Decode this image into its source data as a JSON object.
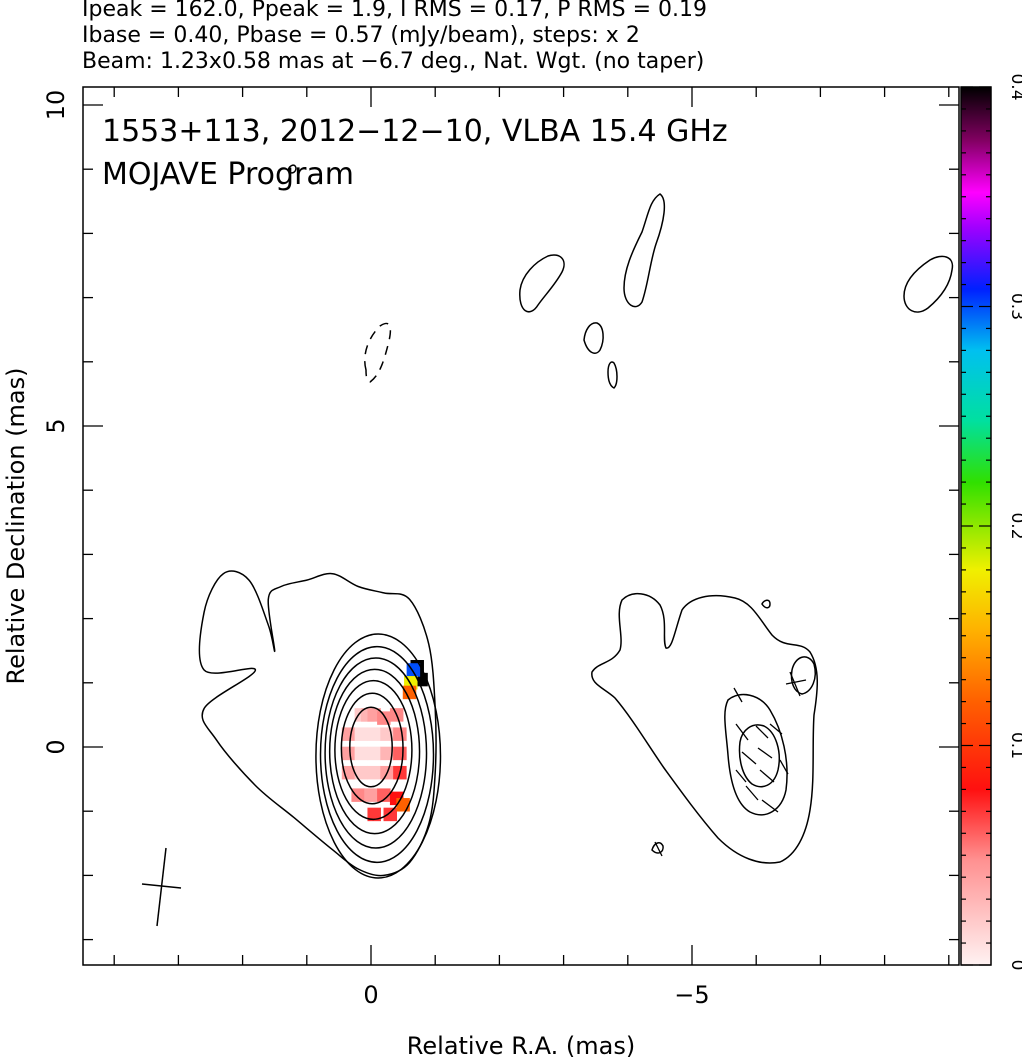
{
  "header": {
    "line1": "Ipeak = 162.0, Ppeak = 1.9, I RMS = 0.17, P RMS = 0.19",
    "line2": "Ibase = 0.40, Pbase = 0.57 (mJy/beam), steps: x 2",
    "line3": "Beam: 1.23x0.58 mas at −6.7 deg., Nat. Wgt. (no taper)"
  },
  "chart_data": {
    "type": "contour",
    "title_line1": "1553+113, 2012−12−10, VLBA 15.4 GHz",
    "title_line2": "MOJAVE Program",
    "xlabel": "Relative R.A. (mas)",
    "ylabel": "Relative Declination (mas)",
    "xlim": [
      4.5,
      -9.2
    ],
    "ylim": [
      -3.4,
      10.2
    ],
    "x_ticks": [
      {
        "v": 0,
        "label": "0"
      },
      {
        "v": -5,
        "label": "−5"
      }
    ],
    "y_ticks": [
      {
        "v": 0,
        "label": "0"
      },
      {
        "v": 5,
        "label": "5"
      },
      {
        "v": 10,
        "label": "10"
      }
    ],
    "colorbar": {
      "min": 0,
      "max": 0.4,
      "ticks": [
        {
          "v": 0,
          "label": "0"
        },
        {
          "v": 0.1,
          "label": "0.1"
        },
        {
          "v": 0.2,
          "label": "0.2"
        },
        {
          "v": 0.3,
          "label": "0.3"
        },
        {
          "v": 0.4,
          "label": "0.4"
        }
      ]
    },
    "core_contours_radii_mas": [
      [
        0.33,
        0.62
      ],
      [
        0.48,
        0.86
      ],
      [
        0.6,
        1.08
      ],
      [
        0.7,
        1.28
      ],
      [
        0.79,
        1.48
      ],
      [
        0.88,
        1.68
      ],
      [
        0.97,
        1.9
      ]
    ],
    "outer_contour_mas": [
      [
        1.8,
        1.2
      ],
      [
        2.6,
        1.2
      ],
      [
        2.6,
        2.1
      ],
      [
        2.3,
        2.7
      ],
      [
        1.9,
        2.6
      ],
      [
        1.6,
        1.9
      ],
      [
        1.5,
        1.5
      ],
      [
        1.6,
        2.3
      ],
      [
        1.4,
        2.5
      ],
      [
        1.0,
        2.6
      ],
      [
        0.6,
        2.7
      ],
      [
        0.2,
        2.5
      ],
      [
        -0.2,
        2.4
      ],
      [
        -0.6,
        2.3
      ],
      [
        -0.9,
        1.6
      ],
      [
        -1.0,
        0.6
      ],
      [
        -1.0,
        -0.4
      ],
      [
        -0.9,
        -1.2
      ],
      [
        -0.6,
        -1.8
      ],
      [
        -0.2,
        -2.0
      ],
      [
        0.2,
        -1.9
      ],
      [
        0.6,
        -1.6
      ],
      [
        1.2,
        -1.1
      ],
      [
        1.8,
        -0.6
      ],
      [
        2.4,
        0.1
      ],
      [
        2.6,
        0.6
      ]
    ],
    "pol_overlay_cells": [
      {
        "x": 0.15,
        "y": 0.5,
        "v": 0.02
      },
      {
        "x": 0.05,
        "y": 0.5,
        "v": 0.03
      },
      {
        "x": -0.05,
        "y": 0.5,
        "v": 0.04
      },
      {
        "x": -0.2,
        "y": 0.45,
        "v": 0.05
      },
      {
        "x": -0.4,
        "y": 0.5,
        "v": 0.05
      },
      {
        "x": 0.35,
        "y": 0.2,
        "v": 0.04
      },
      {
        "x": 0.15,
        "y": 0.2,
        "v": 0.01
      },
      {
        "x": -0.05,
        "y": 0.2,
        "v": 0.01
      },
      {
        "x": -0.25,
        "y": 0.2,
        "v": 0.02
      },
      {
        "x": -0.45,
        "y": 0.2,
        "v": 0.05
      },
      {
        "x": 0.35,
        "y": -0.1,
        "v": 0.04
      },
      {
        "x": 0.15,
        "y": -0.1,
        "v": 0.01
      },
      {
        "x": -0.05,
        "y": -0.1,
        "v": 0.01
      },
      {
        "x": -0.25,
        "y": -0.1,
        "v": 0.03
      },
      {
        "x": -0.45,
        "y": -0.1,
        "v": 0.06
      },
      {
        "x": 0.35,
        "y": -0.4,
        "v": 0.04
      },
      {
        "x": 0.15,
        "y": -0.4,
        "v": 0.02
      },
      {
        "x": -0.05,
        "y": -0.4,
        "v": 0.02
      },
      {
        "x": -0.25,
        "y": -0.4,
        "v": 0.04
      },
      {
        "x": -0.45,
        "y": -0.4,
        "v": 0.07
      },
      {
        "x": 0.2,
        "y": -0.75,
        "v": 0.05
      },
      {
        "x": 0.0,
        "y": -0.75,
        "v": 0.04
      },
      {
        "x": -0.2,
        "y": -0.75,
        "v": 0.06
      },
      {
        "x": -0.4,
        "y": -0.8,
        "v": 0.08
      },
      {
        "x": -0.05,
        "y": -1.05,
        "v": 0.07
      },
      {
        "x": -0.3,
        "y": -1.05,
        "v": 0.07
      },
      {
        "x": -0.5,
        "y": -0.9,
        "v": 0.12
      },
      {
        "x": -0.72,
        "y": 1.25,
        "v": 0.4
      },
      {
        "x": -0.78,
        "y": 1.05,
        "v": 0.4
      },
      {
        "x": -0.66,
        "y": 1.2,
        "v": 0.3
      },
      {
        "x": -0.62,
        "y": 1.0,
        "v": 0.18
      },
      {
        "x": -0.6,
        "y": 0.85,
        "v": 0.12
      }
    ]
  },
  "colors": {
    "contour": "#000000",
    "background": "#ffffff"
  }
}
